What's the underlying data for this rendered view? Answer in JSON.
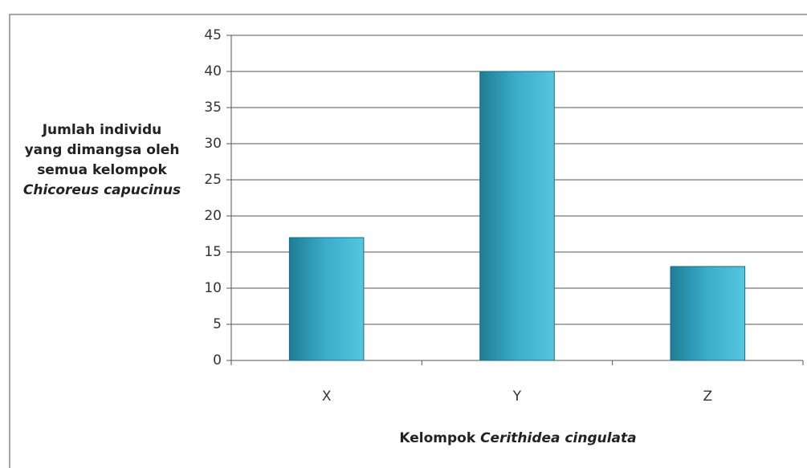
{
  "chart_data": {
    "type": "bar",
    "ylabel": {
      "text": "Jumlah individu yang dimangsa oleh semua kelompok",
      "species": "Chicoreus capucinus"
    },
    "xlabel": {
      "text": "Kelompok",
      "species": "Cerithidea cingulata"
    },
    "categories": [
      "X",
      "Y",
      "Z"
    ],
    "values": [
      17,
      40,
      13
    ],
    "color": "#2f9bb5",
    "ylim": [
      0,
      45
    ],
    "yticks": [
      0,
      5,
      10,
      15,
      20,
      25,
      30,
      35,
      40,
      45
    ],
    "grid": true
  }
}
